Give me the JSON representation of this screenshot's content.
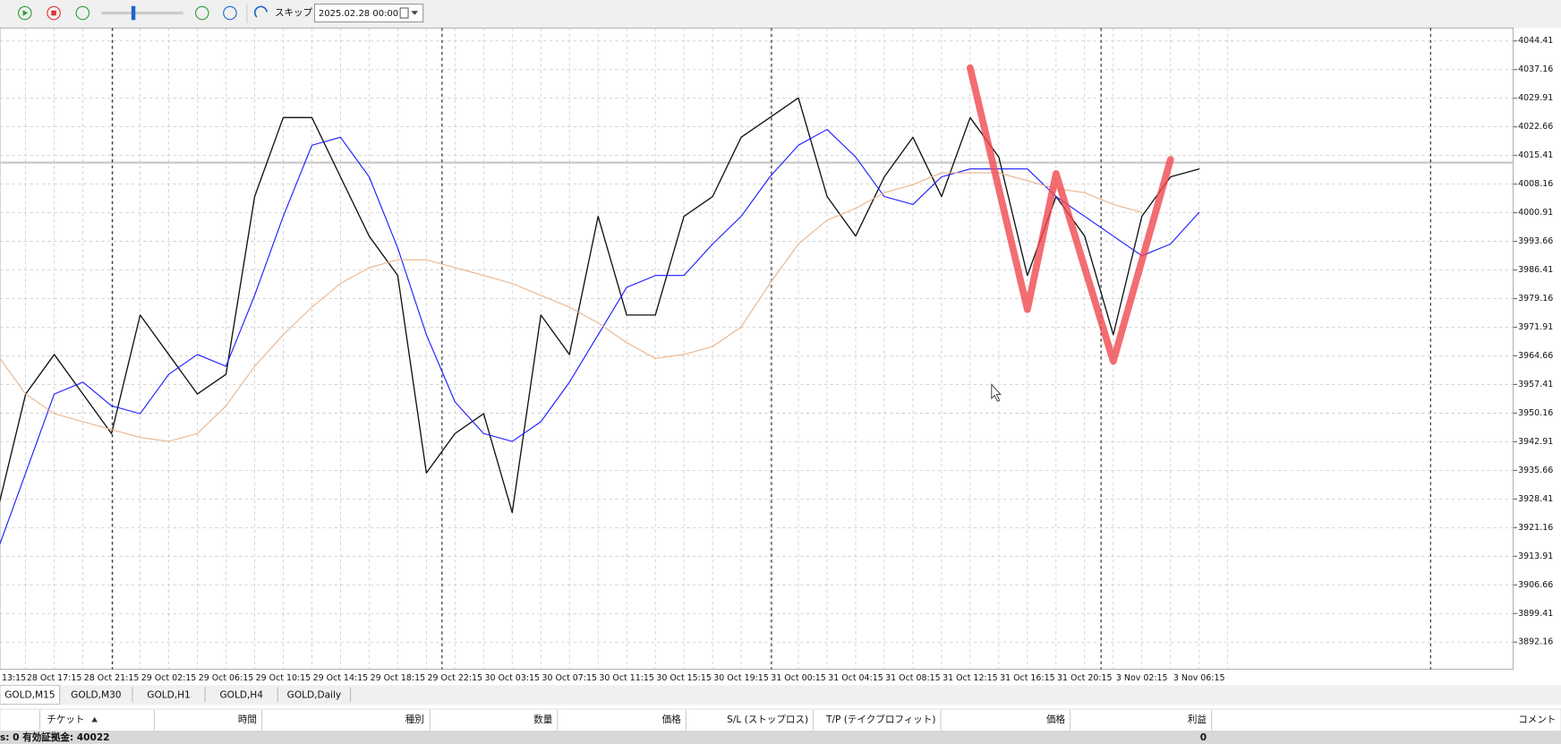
{
  "toolbar": {
    "skip": "スキップ",
    "date": "2025.02.28 00:00"
  },
  "chart_data": {
    "type": "line",
    "categories": [
      "13:15",
      null,
      "28 Oct 17:15",
      null,
      "28 Oct 21:15",
      null,
      "29 Oct 02:15",
      null,
      "29 Oct 06:15",
      null,
      "29 Oct 10:15",
      null,
      "29 Oct 14:15",
      null,
      "29 Oct 18:15",
      null,
      "29 Oct 22:15",
      null,
      "30 Oct 03:15",
      null,
      "30 Oct 07:15",
      null,
      "30 Oct 11:15",
      null,
      "30 Oct 15:15",
      null,
      "30 Oct 19:15",
      null,
      "31 Oct 00:15",
      null,
      "31 Oct 04:15",
      null,
      "31 Oct 08:15",
      null,
      "31 Oct 12:15",
      null,
      "31 Oct 16:15",
      null,
      "31 Oct 20:15",
      null,
      "3 Nov 02:15",
      null,
      "3 Nov 06:15",
      null
    ],
    "series": [
      {
        "color": "#111111",
        "width": 1.2,
        "values": [
          3925,
          3955,
          3965,
          3955,
          3945,
          3975,
          3965,
          3955,
          3960,
          4005,
          4025,
          4025,
          4010,
          3995,
          3985,
          3935,
          3945,
          3950,
          3925,
          3975,
          3965,
          4000,
          3975,
          3975,
          4000,
          4005,
          4020,
          4025,
          4030,
          4005,
          3995,
          4010,
          4020,
          4005,
          4025,
          4015,
          3985,
          4005,
          3995,
          3970,
          4000,
          4010,
          4012,
          null
        ]
      },
      {
        "color": "#1a1aff",
        "width": 1,
        "values": [
          3915,
          3935,
          3955,
          3958,
          3952,
          3950,
          3960,
          3965,
          3962,
          3980,
          4000,
          4018,
          4020,
          4010,
          3992,
          3970,
          3953,
          3945,
          3943,
          3948,
          3958,
          3970,
          3982,
          3985,
          3985,
          3993,
          4000,
          4010,
          4018,
          4022,
          4015,
          4005,
          4003,
          4010,
          4012,
          4012,
          4012,
          4005,
          4000,
          3995,
          3990,
          3993,
          4001,
          null
        ]
      },
      {
        "color": "#e8b48c",
        "width": 1,
        "values": [
          3965,
          3955,
          3950,
          3948,
          3946,
          3944,
          3943,
          3945,
          3952,
          3962,
          3970,
          3977,
          3983,
          3987,
          3989,
          3989,
          3987,
          3985,
          3983,
          3980,
          3977,
          3973,
          3968,
          3964,
          3965,
          3967,
          3972,
          3983,
          3993,
          3999,
          4002,
          4006,
          4008,
          4011,
          4011,
          4011,
          4009,
          4007,
          4006,
          4003,
          4001,
          null,
          null,
          null
        ]
      },
      {
        "color": "#f0484e",
        "width": 7,
        "values": [
          null,
          null,
          null,
          null,
          null,
          null,
          null,
          null,
          null,
          null,
          null,
          null,
          null,
          null,
          null,
          null,
          null,
          null,
          null,
          null,
          null,
          null,
          null,
          null,
          null,
          null,
          null,
          null,
          null,
          null,
          null,
          null,
          null,
          null,
          4037.6,
          4007,
          3976.4,
          4010.8,
          3987,
          3963.3,
          3988.8,
          4014.4,
          null,
          null
        ]
      }
    ],
    "current_price": 4013.6,
    "ylim": [
      3885.3,
      4047.7
    ],
    "yticks": [
      4044.41,
      4037.16,
      4029.91,
      4022.66,
      4015.41,
      4008.16,
      4000.91,
      3993.66,
      3986.41,
      3979.16,
      3971.91,
      3964.66,
      3957.41,
      3950.16,
      3942.91,
      3935.66,
      3928.41,
      3921.16,
      3913.91,
      3906.66,
      3899.41,
      3892.16
    ],
    "grid": true
  },
  "tabs": [
    "GOLD,M15",
    "GOLD,M30",
    "GOLD,H1",
    "GOLD,H4",
    "GOLD,Daily"
  ],
  "table": {
    "headers": [
      "チケット",
      "時間",
      "種別",
      "数量",
      "価格",
      "S/L (ストップロス)",
      "T/P (テイクプロフィット)",
      "価格",
      "利益",
      "コメント"
    ],
    "status": "s: 0  有効証拠金: 40022",
    "profit": "0"
  }
}
